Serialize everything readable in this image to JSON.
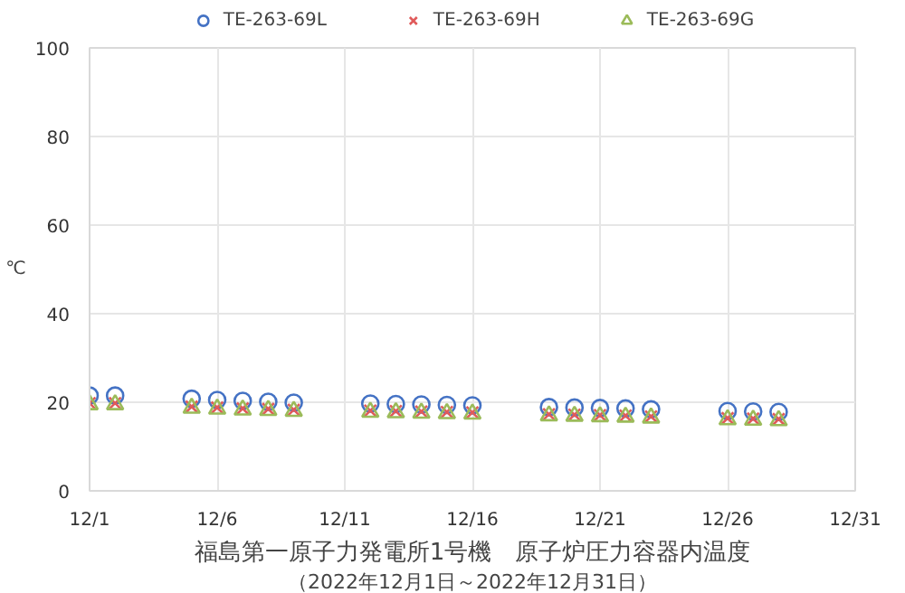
{
  "chart_data": {
    "type": "scatter",
    "title": "福島第一原子力発電所1号機　原子炉圧力容器内温度",
    "subtitle": "（2022年12月1日～2022年12月31日）",
    "ylabel": "℃",
    "x": [
      "2022-12-01",
      "2022-12-02",
      "2022-12-05",
      "2022-12-06",
      "2022-12-07",
      "2022-12-08",
      "2022-12-09",
      "2022-12-12",
      "2022-12-13",
      "2022-12-14",
      "2022-12-15",
      "2022-12-16",
      "2022-12-19",
      "2022-12-20",
      "2022-12-21",
      "2022-12-22",
      "2022-12-23",
      "2022-12-26",
      "2022-12-27",
      "2022-12-28"
    ],
    "series": [
      {
        "name": "TE-263-69L",
        "color": "#4472c4",
        "marker": "circle",
        "values": [
          21.5,
          21.5,
          20.8,
          20.5,
          20.3,
          20.1,
          19.9,
          19.7,
          19.6,
          19.5,
          19.4,
          19.3,
          18.9,
          18.8,
          18.7,
          18.6,
          18.4,
          18.0,
          17.9,
          17.8
        ]
      },
      {
        "name": "TE-263-69H",
        "color": "#e05a5a",
        "marker": "cross",
        "values": [
          19.8,
          19.8,
          19.0,
          18.8,
          18.6,
          18.5,
          18.3,
          18.1,
          18.0,
          17.9,
          17.8,
          17.7,
          17.3,
          17.2,
          17.1,
          17.0,
          16.8,
          16.4,
          16.3,
          16.2
        ]
      },
      {
        "name": "TE-263-69G",
        "color": "#9bbb59",
        "marker": "triangle",
        "values": [
          19.5,
          19.5,
          18.7,
          18.5,
          18.3,
          18.2,
          18.0,
          17.8,
          17.7,
          17.6,
          17.5,
          17.4,
          17.0,
          16.9,
          16.8,
          16.7,
          16.5,
          16.1,
          16.0,
          15.9
        ]
      }
    ],
    "xlim": [
      "2022-12-01",
      "2022-12-31"
    ],
    "xticks": [
      {
        "value": "2022-12-01",
        "label": "12/1"
      },
      {
        "value": "2022-12-06",
        "label": "12/6"
      },
      {
        "value": "2022-12-11",
        "label": "12/11"
      },
      {
        "value": "2022-12-16",
        "label": "12/16"
      },
      {
        "value": "2022-12-21",
        "label": "12/21"
      },
      {
        "value": "2022-12-26",
        "label": "12/26"
      },
      {
        "value": "2022-12-31",
        "label": "12/31"
      }
    ],
    "ylim": [
      0,
      100
    ],
    "yticks": [
      0,
      20,
      40,
      60,
      80,
      100
    ],
    "grid": true,
    "legend": "top"
  }
}
